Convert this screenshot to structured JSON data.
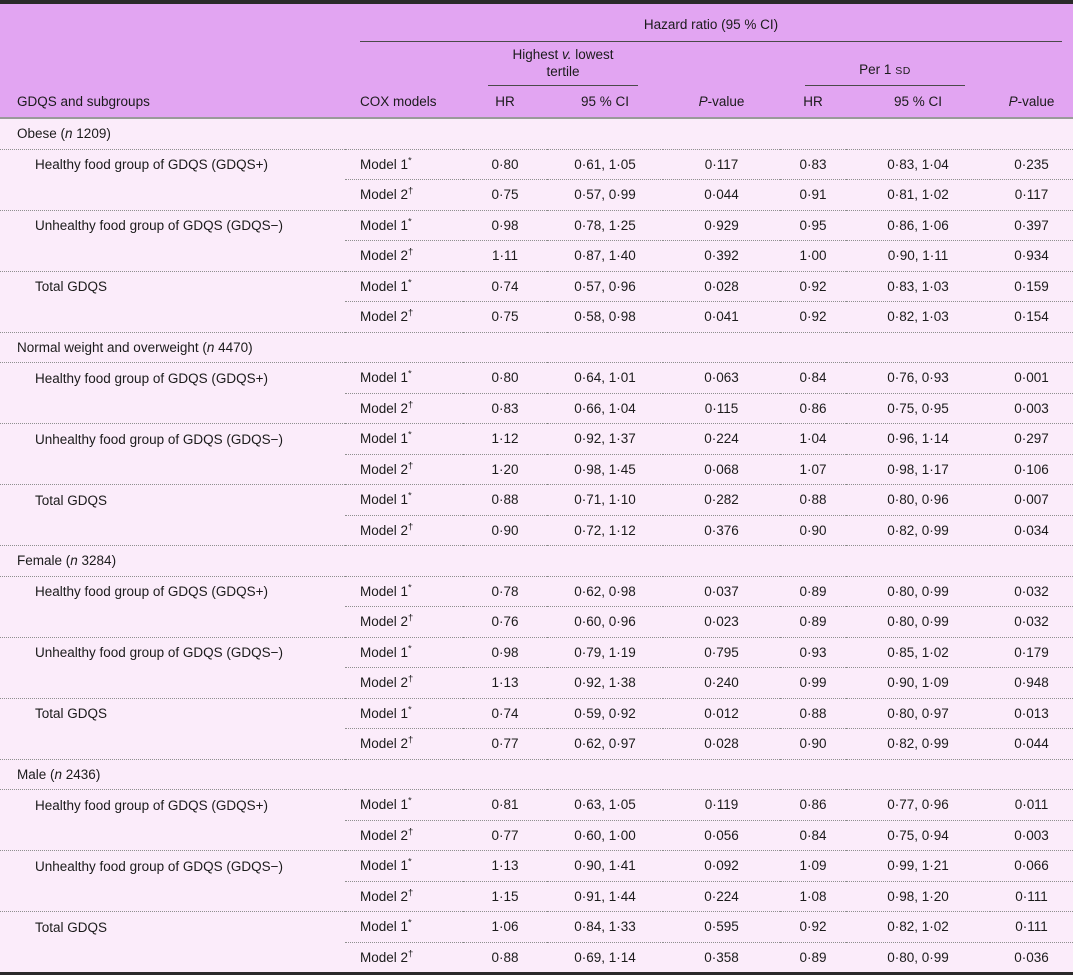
{
  "table": {
    "header": {
      "hazard_title": "Hazard ratio (95 % CI)",
      "tertile_line1_a": "Highest",
      "tertile_v": "v.",
      "tertile_line1_b": "lowest",
      "tertile_line2": "tertile",
      "per_sd_prefix": "Per 1",
      "per_sd_small": "SD",
      "col_group_label": "GDQS and subgroups",
      "cox_label": "COX models",
      "hr": "HR",
      "ci": "95 % CI",
      "p_italic": "P",
      "p_rest": "-value"
    },
    "colors": {
      "header_bg": "#e2a5f2",
      "body_bg": "#fbecfa",
      "rule_dark": "#2a2a2a",
      "rule_gray": "#9a9a9a",
      "dotted": "#8f8f8f"
    },
    "groups": [
      {
        "pre": "Obese (",
        "n": "n",
        "post": " 1209)",
        "subgroups": [
          {
            "label": "Healthy food group of GDQS (GDQS+)",
            "rows": [
              {
                "model": "Model 1",
                "sup": "*",
                "hr1": "0·80",
                "ci1": "0·61, 1·05",
                "p1": "0·117",
                "hr2": "0·83",
                "ci2": "0·83, 1·04",
                "p2": "0·235"
              },
              {
                "model": "Model 2",
                "sup": "†",
                "hr1": "0·75",
                "ci1": "0·57, 0·99",
                "p1": "0·044",
                "hr2": "0·91",
                "ci2": "0·81, 1·02",
                "p2": "0·117"
              }
            ]
          },
          {
            "label": "Unhealthy food group of GDQS (GDQS−)",
            "rows": [
              {
                "model": "Model 1",
                "sup": "*",
                "hr1": "0·98",
                "ci1": "0·78, 1·25",
                "p1": "0·929",
                "hr2": "0·95",
                "ci2": "0·86, 1·06",
                "p2": "0·397"
              },
              {
                "model": "Model 2",
                "sup": "†",
                "hr1": "1·11",
                "ci1": "0·87, 1·40",
                "p1": "0·392",
                "hr2": "1·00",
                "ci2": "0·90, 1·11",
                "p2": "0·934"
              }
            ]
          },
          {
            "label": "Total GDQS",
            "rows": [
              {
                "model": "Model 1",
                "sup": "*",
                "hr1": "0·74",
                "ci1": "0·57, 0·96",
                "p1": "0·028",
                "hr2": "0·92",
                "ci2": "0·83, 1·03",
                "p2": "0·159"
              },
              {
                "model": "Model 2",
                "sup": "†",
                "hr1": "0·75",
                "ci1": "0·58, 0·98",
                "p1": "0·041",
                "hr2": "0·92",
                "ci2": "0·82, 1·03",
                "p2": "0·154"
              }
            ]
          }
        ]
      },
      {
        "pre": "Normal weight and overweight (",
        "n": "n",
        "post": " 4470)",
        "subgroups": [
          {
            "label": "Healthy food group of GDQS (GDQS+)",
            "rows": [
              {
                "model": "Model 1",
                "sup": "*",
                "hr1": "0·80",
                "ci1": "0·64, 1·01",
                "p1": "0·063",
                "hr2": "0·84",
                "ci2": "0·76, 0·93",
                "p2": "0·001"
              },
              {
                "model": "Model 2",
                "sup": "†",
                "hr1": "0·83",
                "ci1": "0·66, 1·04",
                "p1": "0·115",
                "hr2": "0·86",
                "ci2": "0·75, 0·95",
                "p2": "0·003"
              }
            ]
          },
          {
            "label": "Unhealthy food group of GDQS (GDQS−)",
            "rows": [
              {
                "model": "Model 1",
                "sup": "*",
                "hr1": "1·12",
                "ci1": "0·92, 1·37",
                "p1": "0·224",
                "hr2": "1·04",
                "ci2": "0·96, 1·14",
                "p2": "0·297"
              },
              {
                "model": "Model 2",
                "sup": "†",
                "hr1": "1·20",
                "ci1": "0·98, 1·45",
                "p1": "0·068",
                "hr2": "1·07",
                "ci2": "0·98, 1·17",
                "p2": "0·106"
              }
            ]
          },
          {
            "label": "Total GDQS",
            "rows": [
              {
                "model": "Model 1",
                "sup": "*",
                "hr1": "0·88",
                "ci1": "0·71, 1·10",
                "p1": "0·282",
                "hr2": "0·88",
                "ci2": "0·80, 0·96",
                "p2": "0·007"
              },
              {
                "model": "Model 2",
                "sup": "†",
                "hr1": "0·90",
                "ci1": "0·72, 1·12",
                "p1": "0·376",
                "hr2": "0·90",
                "ci2": "0·82, 0·99",
                "p2": "0·034"
              }
            ]
          }
        ]
      },
      {
        "pre": "Female (",
        "n": "n",
        "post": " 3284)",
        "subgroups": [
          {
            "label": "Healthy food group of GDQS (GDQS+)",
            "rows": [
              {
                "model": "Model 1",
                "sup": "*",
                "hr1": "0·78",
                "ci1": "0·62, 0·98",
                "p1": "0·037",
                "hr2": "0·89",
                "ci2": "0·80, 0·99",
                "p2": "0·032"
              },
              {
                "model": "Model 2",
                "sup": "†",
                "hr1": "0·76",
                "ci1": "0·60, 0·96",
                "p1": "0·023",
                "hr2": "0·89",
                "ci2": "0·80, 0·99",
                "p2": "0·032"
              }
            ]
          },
          {
            "label": "Unhealthy food group of GDQS (GDQS−)",
            "rows": [
              {
                "model": "Model 1",
                "sup": "*",
                "hr1": "0·98",
                "ci1": "0·79, 1·19",
                "p1": "0·795",
                "hr2": "0·93",
                "ci2": "0·85, 1·02",
                "p2": "0·179"
              },
              {
                "model": "Model 2",
                "sup": "†",
                "hr1": "1·13",
                "ci1": "0·92, 1·38",
                "p1": "0·240",
                "hr2": "0·99",
                "ci2": "0·90, 1·09",
                "p2": "0·948"
              }
            ]
          },
          {
            "label": "Total GDQS",
            "rows": [
              {
                "model": "Model 1",
                "sup": "*",
                "hr1": "0·74",
                "ci1": "0·59, 0·92",
                "p1": "0·012",
                "hr2": "0·88",
                "ci2": "0·80, 0·97",
                "p2": "0·013"
              },
              {
                "model": "Model 2",
                "sup": "†",
                "hr1": "0·77",
                "ci1": "0·62, 0·97",
                "p1": "0·028",
                "hr2": "0·90",
                "ci2": "0·82, 0·99",
                "p2": "0·044"
              }
            ]
          }
        ]
      },
      {
        "pre": "Male (",
        "n": "n",
        "post": " 2436)",
        "subgroups": [
          {
            "label": "Healthy food group of GDQS (GDQS+)",
            "rows": [
              {
                "model": "Model 1",
                "sup": "*",
                "hr1": "0·81",
                "ci1": "0·63, 1·05",
                "p1": "0·119",
                "hr2": "0·86",
                "ci2": "0·77, 0·96",
                "p2": "0·011"
              },
              {
                "model": "Model 2",
                "sup": "†",
                "hr1": "0·77",
                "ci1": "0·60, 1·00",
                "p1": "0·056",
                "hr2": "0·84",
                "ci2": "0·75, 0·94",
                "p2": "0·003"
              }
            ]
          },
          {
            "label": "Unhealthy food group of GDQS (GDQS−)",
            "rows": [
              {
                "model": "Model 1",
                "sup": "*",
                "hr1": "1·13",
                "ci1": "0·90, 1·41",
                "p1": "0·092",
                "hr2": "1·09",
                "ci2": "0·99, 1·21",
                "p2": "0·066"
              },
              {
                "model": "Model 2",
                "sup": "†",
                "hr1": "1·15",
                "ci1": "0·91, 1·44",
                "p1": "0·224",
                "hr2": "1·08",
                "ci2": "0·98, 1·20",
                "p2": "0·111"
              }
            ]
          },
          {
            "label": "Total GDQS",
            "rows": [
              {
                "model": "Model 1",
                "sup": "*",
                "hr1": "1·06",
                "ci1": "0·84, 1·33",
                "p1": "0·595",
                "hr2": "0·92",
                "ci2": "0·82, 1·02",
                "p2": "0·111"
              },
              {
                "model": "Model 2",
                "sup": "†",
                "hr1": "0·88",
                "ci1": "0·69, 1·14",
                "p1": "0·358",
                "hr2": "0·89",
                "ci2": "0·80, 0·99",
                "p2": "0·036"
              }
            ]
          }
        ]
      }
    ]
  }
}
